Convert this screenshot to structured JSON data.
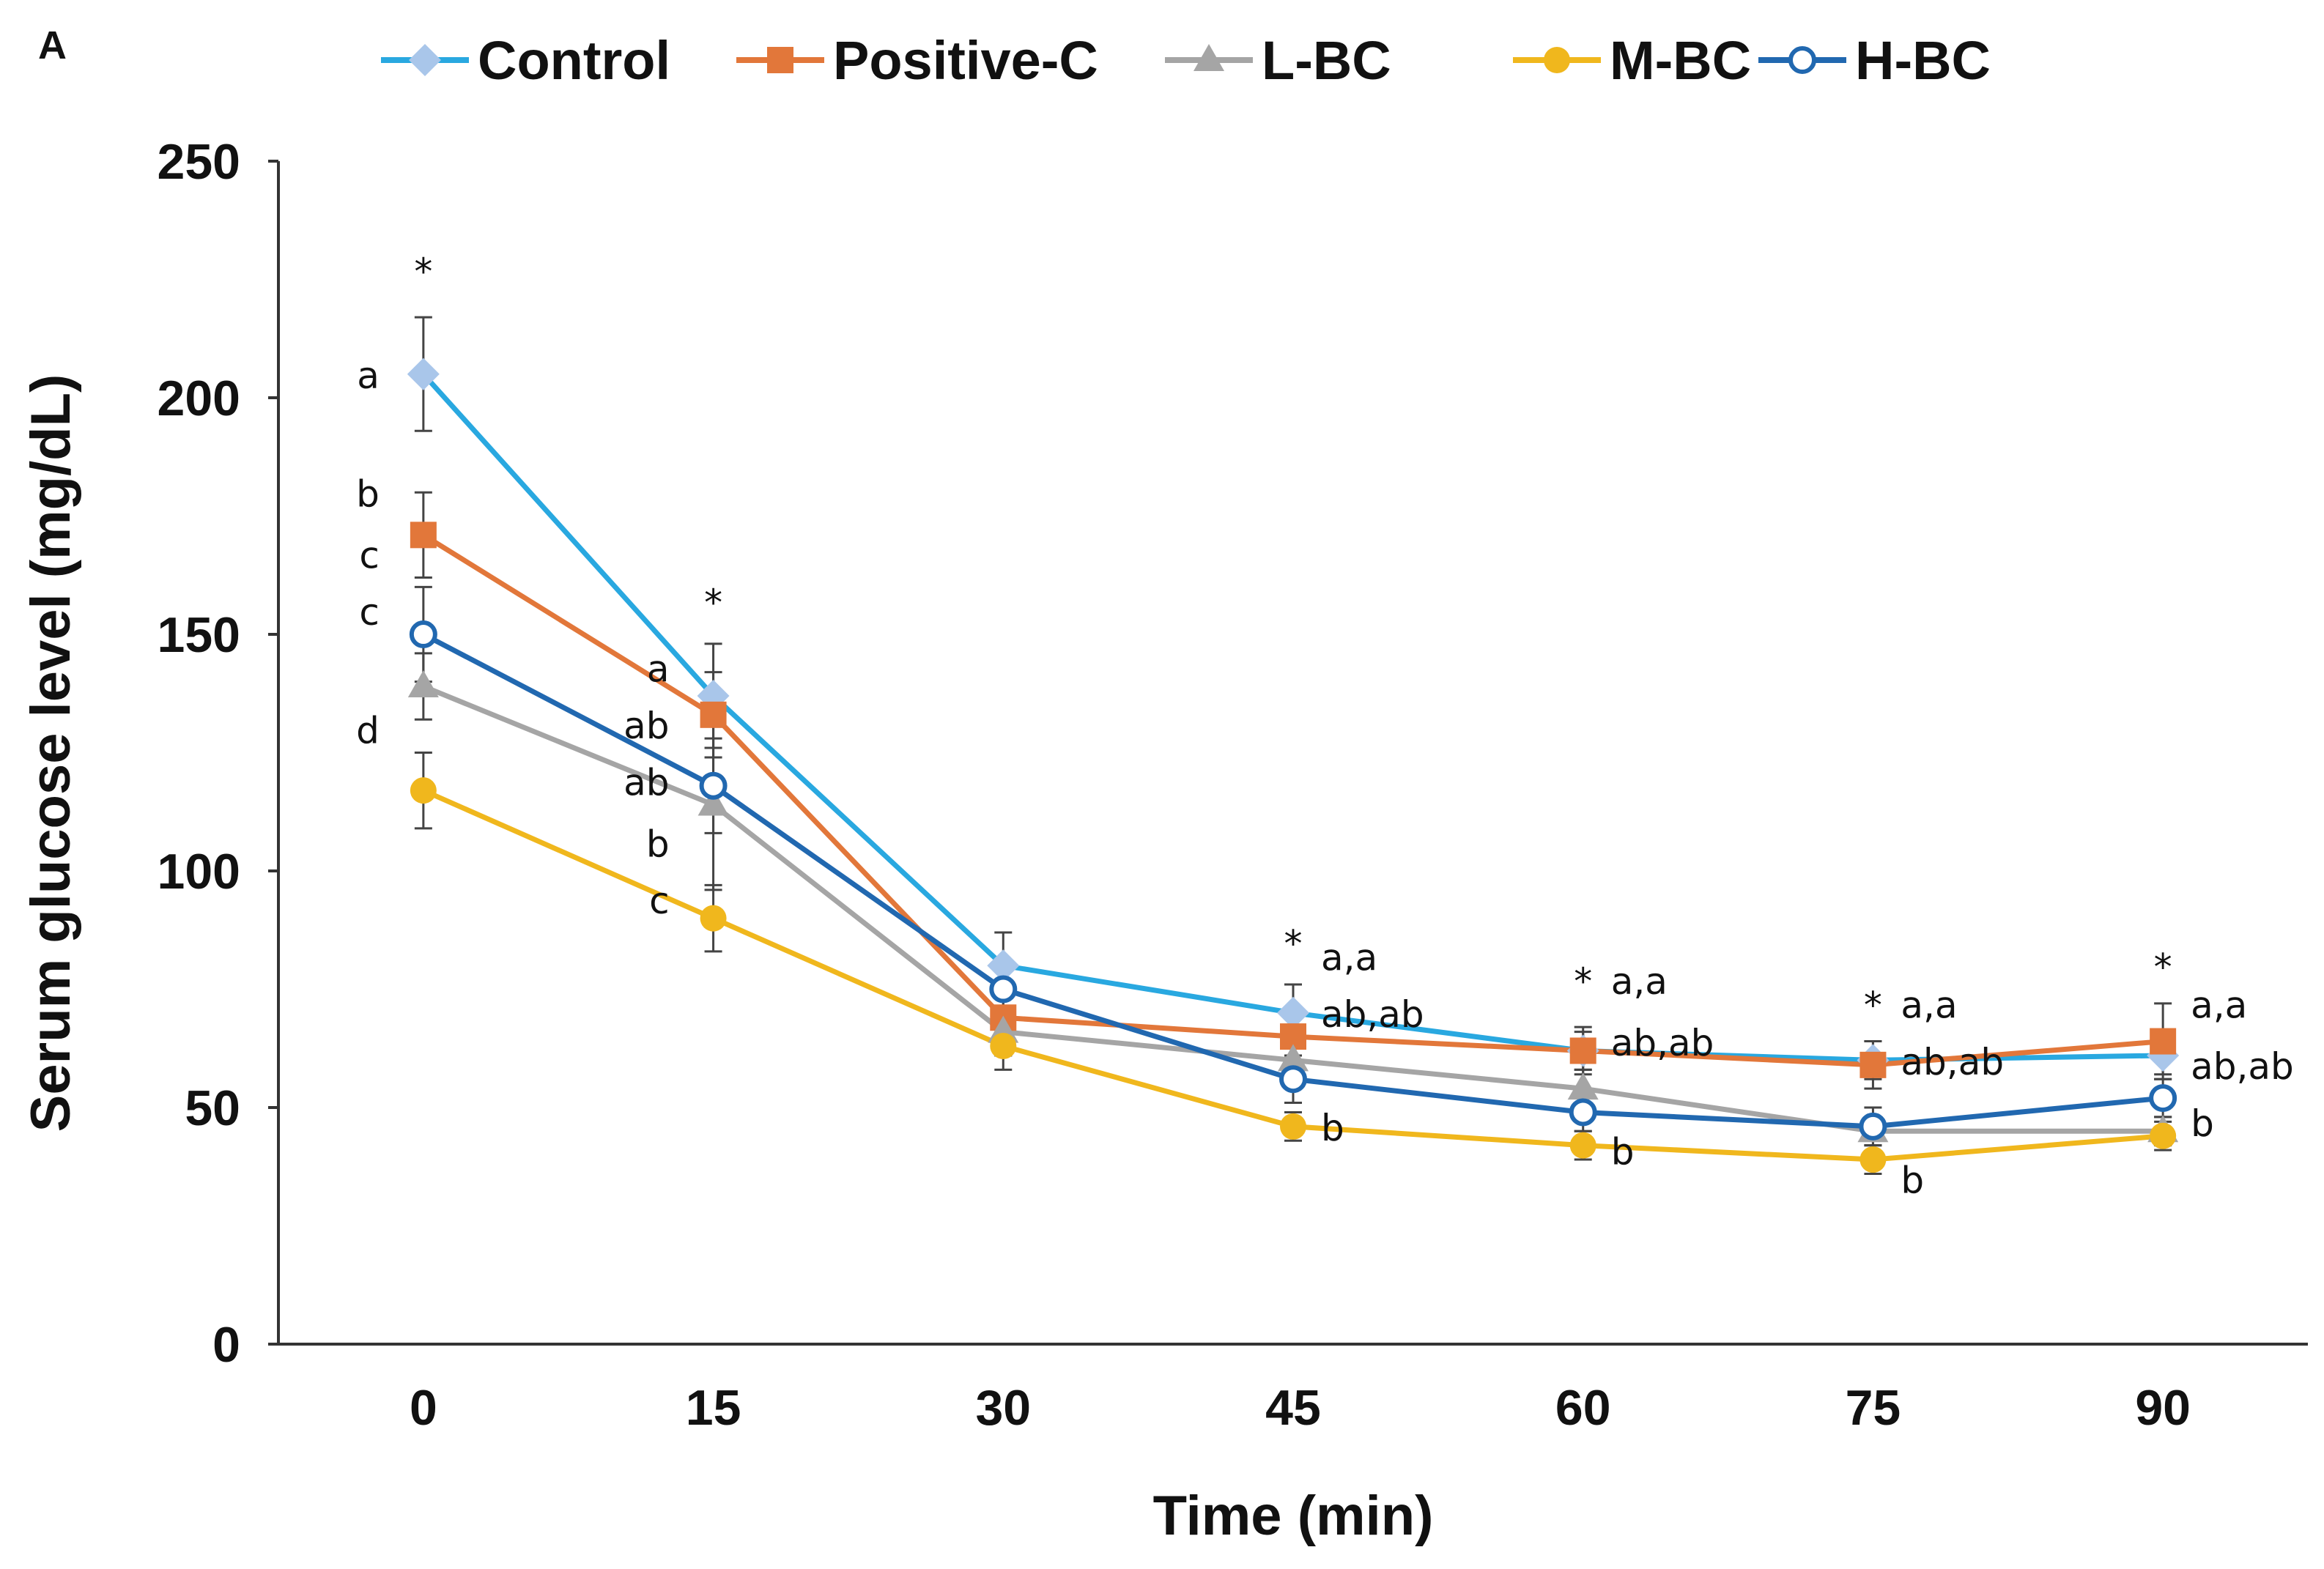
{
  "panel_label": "A",
  "chart_data": {
    "type": "line",
    "title": "",
    "xlabel": "Time (min)",
    "ylabel": "Serum glucose level (mg/dL)",
    "x": [
      0,
      15,
      30,
      45,
      60,
      75,
      90
    ],
    "xlim": [
      -7.5,
      97.5
    ],
    "ylim": [
      0,
      250
    ],
    "yticks": [
      0,
      50,
      100,
      150,
      200,
      250
    ],
    "grid": false,
    "legend_position": "top",
    "series": [
      {
        "name": "Control",
        "color": "#29a8e0",
        "marker_color": "#a9c6ea",
        "marker": "diamond",
        "values": [
          205,
          137,
          80,
          70,
          62,
          60,
          61
        ],
        "errors": [
          12,
          11,
          7,
          6,
          5,
          4,
          4
        ]
      },
      {
        "name": "Positive-C",
        "color": "#e2773a",
        "marker_color": "#e2773a",
        "marker": "square",
        "values": [
          171,
          133,
          69,
          65,
          62,
          59,
          64
        ],
        "errors": [
          9,
          9,
          5,
          5,
          4,
          5,
          8
        ]
      },
      {
        "name": "L-BC",
        "color": "#a5a5a5",
        "marker_color": "#a5a5a5",
        "marker": "triangle",
        "values": [
          139,
          114,
          66,
          60,
          54,
          45,
          45
        ],
        "errors": [
          7,
          18,
          5,
          4,
          4,
          3,
          3
        ]
      },
      {
        "name": "M-BC",
        "color": "#f0b71d",
        "marker_color": "#f0b71d",
        "marker": "circle",
        "values": [
          117,
          90,
          63,
          46,
          42,
          39,
          44
        ],
        "errors": [
          8,
          7,
          5,
          3,
          3,
          3,
          3
        ]
      },
      {
        "name": "H-BC",
        "color": "#2168b0",
        "marker_color": "#ffffff",
        "marker": "open-circle",
        "values": [
          150,
          118,
          75,
          56,
          49,
          46,
          52
        ],
        "errors": [
          10,
          10,
          6,
          5,
          4,
          4,
          4
        ]
      }
    ],
    "annotations": [
      {
        "text": "*",
        "x": 0,
        "y": 224,
        "anchor": "middle"
      },
      {
        "text": "a",
        "x": 0,
        "y": 202,
        "anchor": "end"
      },
      {
        "text": "b",
        "x": 0,
        "y": 177,
        "anchor": "end"
      },
      {
        "text": "c",
        "x": 0,
        "y": 164,
        "anchor": "end"
      },
      {
        "text": "c",
        "x": 0,
        "y": 152,
        "anchor": "end"
      },
      {
        "text": "d",
        "x": 0,
        "y": 127,
        "anchor": "end"
      },
      {
        "text": "*",
        "x": 15,
        "y": 154,
        "anchor": "middle"
      },
      {
        "text": "a",
        "x": 15,
        "y": 140,
        "anchor": "end"
      },
      {
        "text": "ab",
        "x": 15,
        "y": 128,
        "anchor": "end"
      },
      {
        "text": "ab",
        "x": 15,
        "y": 116,
        "anchor": "end"
      },
      {
        "text": "b",
        "x": 15,
        "y": 103,
        "anchor": "end"
      },
      {
        "text": "c",
        "x": 15,
        "y": 91,
        "anchor": "end"
      },
      {
        "text": "*",
        "x": 45,
        "y": 82,
        "anchor": "middle"
      },
      {
        "text": "a,a",
        "x": 45,
        "y": 79,
        "anchor": "start"
      },
      {
        "text": "ab,ab",
        "x": 45,
        "y": 67,
        "anchor": "start"
      },
      {
        "text": "b",
        "x": 45,
        "y": 43,
        "anchor": "start"
      },
      {
        "text": "*",
        "x": 60,
        "y": 74,
        "anchor": "middle"
      },
      {
        "text": "a,a",
        "x": 60,
        "y": 74,
        "anchor": "start"
      },
      {
        "text": "ab,ab",
        "x": 60,
        "y": 61,
        "anchor": "start"
      },
      {
        "text": "b",
        "x": 60,
        "y": 38,
        "anchor": "start"
      },
      {
        "text": "*",
        "x": 75,
        "y": 69,
        "anchor": "middle"
      },
      {
        "text": "a,a",
        "x": 75,
        "y": 69,
        "anchor": "start"
      },
      {
        "text": "ab,ab",
        "x": 75,
        "y": 57,
        "anchor": "start"
      },
      {
        "text": "b",
        "x": 75,
        "y": 32,
        "anchor": "start"
      },
      {
        "text": "*",
        "x": 90,
        "y": 77,
        "anchor": "middle"
      },
      {
        "text": "a,a",
        "x": 90,
        "y": 69,
        "anchor": "start"
      },
      {
        "text": "ab,ab",
        "x": 90,
        "y": 56,
        "anchor": "start"
      },
      {
        "text": "b",
        "x": 90,
        "y": 44,
        "anchor": "start"
      }
    ]
  }
}
